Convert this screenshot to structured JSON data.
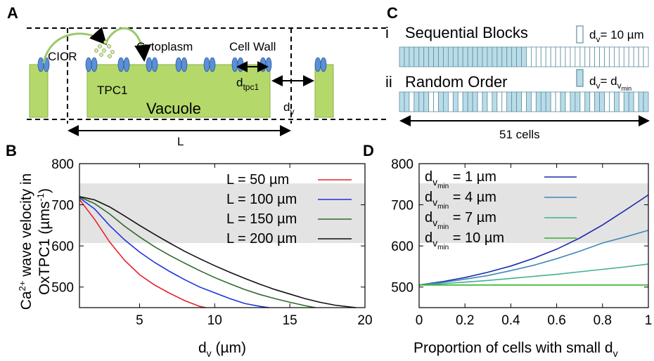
{
  "colors": {
    "vacuole_fill": "#b5d86a",
    "vacuole_stroke": "#8ab04a",
    "channel_fill": "#5b8fd6",
    "band_fill": "#e3e3e3",
    "block_fill": "#b9dce8",
    "block_stroke": "#5f8fa0"
  },
  "panel_a": {
    "letter": "A",
    "labels": {
      "cicr": "CICR",
      "cytoplasm": "Cytoplasm",
      "cell_wall": "Cell Wall",
      "tpc1": "TPC1",
      "vacuole": "Vacuole",
      "d_tpc1": "d",
      "d_tpc1_sub": "tpc1",
      "d_v": "d",
      "d_v_sub": "v",
      "L": "L"
    }
  },
  "panel_c": {
    "letter": "C",
    "row_i": {
      "numeral": "i",
      "title": "Sequential Blocks",
      "legend": "d",
      "legend_sub": "v",
      "legend_value": "= 10 µm"
    },
    "row_ii": {
      "numeral": "ii",
      "title": "Random Order",
      "legend": "d",
      "legend_sub": "v",
      "legend_eq": "= d",
      "legend_sub2": "v",
      "legend_sub3": "min"
    },
    "cells_label": "51 cells",
    "num_cells": 51,
    "sequential_filled": 26,
    "random_filled": [
      0,
      1,
      3,
      4,
      5,
      8,
      9,
      11,
      13,
      14,
      15,
      17,
      19,
      22,
      23,
      24,
      26,
      28,
      29,
      30,
      33,
      35,
      36,
      38,
      40,
      41,
      44,
      46,
      47,
      49,
      50
    ]
  },
  "chart_data": [
    {
      "panel": "B",
      "type": "line",
      "ylabel_line1_pre": "Ca",
      "ylabel_line1_sup": "2+",
      "ylabel_line1_post": " wave velocity in",
      "ylabel_line2_pre": "OxTPC1 (µms",
      "ylabel_line2_sup": "-1",
      "ylabel_line2_post": ")",
      "xlabel_pre": "d",
      "xlabel_sub": "v",
      "xlabel_post": " (µm)",
      "xlim": [
        1,
        20
      ],
      "ylim": [
        450,
        800
      ],
      "xticks": [
        5,
        10,
        15,
        20
      ],
      "yticks": [
        500,
        600,
        700,
        800
      ],
      "band": [
        607,
        752
      ],
      "series": [
        {
          "name": "L =  50 µm",
          "color": "#e8202a",
          "x": [
            1,
            2,
            3,
            4,
            5,
            6,
            7,
            8,
            9,
            9.4
          ],
          "y": [
            713,
            665,
            610,
            565,
            530,
            505,
            485,
            467,
            453,
            450
          ]
        },
        {
          "name": "L = 100 µm",
          "color": "#1c33e0",
          "x": [
            1,
            2,
            3,
            4,
            5,
            6,
            7,
            8,
            9,
            10,
            11,
            12,
            13,
            13.6
          ],
          "y": [
            717,
            690,
            650,
            615,
            585,
            560,
            538,
            518,
            500,
            486,
            472,
            460,
            453,
            450
          ]
        },
        {
          "name": "L = 150 µm",
          "color": "#2f6a2a",
          "x": [
            1,
            2,
            3,
            4,
            5,
            6,
            7,
            8,
            9,
            10,
            11,
            12,
            13,
            14,
            15,
            16,
            16.7
          ],
          "y": [
            719,
            703,
            678,
            648,
            622,
            598,
            577,
            558,
            540,
            523,
            508,
            494,
            482,
            472,
            463,
            455,
            450
          ]
        },
        {
          "name": "L = 200 µm",
          "color": "#111111",
          "x": [
            1,
            2,
            3,
            4,
            5,
            6,
            7,
            8,
            9,
            10,
            11,
            12,
            13,
            14,
            15,
            16,
            17,
            18,
            19.4
          ],
          "y": [
            720,
            712,
            695,
            673,
            650,
            628,
            607,
            587,
            569,
            552,
            536,
            521,
            507,
            494,
            483,
            472,
            463,
            456,
            450
          ]
        }
      ]
    },
    {
      "panel": "D",
      "type": "line",
      "xlabel_pre": "Proportion of cells with small d",
      "xlabel_sub": "v",
      "xlim": [
        0,
        1
      ],
      "ylim": [
        450,
        800
      ],
      "xticks": [
        0,
        0.2,
        0.4,
        0.6,
        0.8,
        1
      ],
      "xtick_labels": [
        "0",
        "0.2",
        "0.4",
        "0.6",
        "0.8",
        "1"
      ],
      "yticks": [
        500,
        600,
        700,
        800
      ],
      "band": [
        607,
        752
      ],
      "series": [
        {
          "name_pre": "d",
          "name_sub": "v",
          "name_sub2": "min",
          "name_post": " =   1 µm",
          "color": "#1c2ca8",
          "x": [
            0,
            0.1,
            0.2,
            0.3,
            0.4,
            0.5,
            0.6,
            0.7,
            0.8,
            0.9,
            1.0
          ],
          "y": [
            505,
            513,
            523,
            536,
            551,
            570,
            592,
            619,
            651,
            687,
            724
          ]
        },
        {
          "name_pre": "d",
          "name_sub": "v",
          "name_sub2": "min",
          "name_post": " =   4 µm",
          "color": "#3f88b8",
          "x": [
            0,
            0.1,
            0.2,
            0.3,
            0.4,
            0.5,
            0.6,
            0.7,
            0.8,
            0.9,
            1.0
          ],
          "y": [
            505,
            511,
            519,
            528,
            540,
            553,
            569,
            587,
            607,
            622,
            638
          ]
        },
        {
          "name_pre": "d",
          "name_sub": "v",
          "name_sub2": "min",
          "name_post": " =   7 µm",
          "color": "#3fb28c",
          "x": [
            0,
            0.1,
            0.2,
            0.3,
            0.4,
            0.5,
            0.6,
            0.7,
            0.8,
            0.9,
            1.0
          ],
          "y": [
            505,
            508,
            512,
            516,
            521,
            526,
            531,
            537,
            543,
            549,
            556
          ]
        },
        {
          "name_pre": "d",
          "name_sub": "v",
          "name_sub2": "min",
          "name_post": " = 10 µm",
          "color": "#35b12a",
          "x": [
            0,
            0.5,
            1.0
          ],
          "y": [
            505,
            505,
            505
          ]
        }
      ]
    }
  ]
}
